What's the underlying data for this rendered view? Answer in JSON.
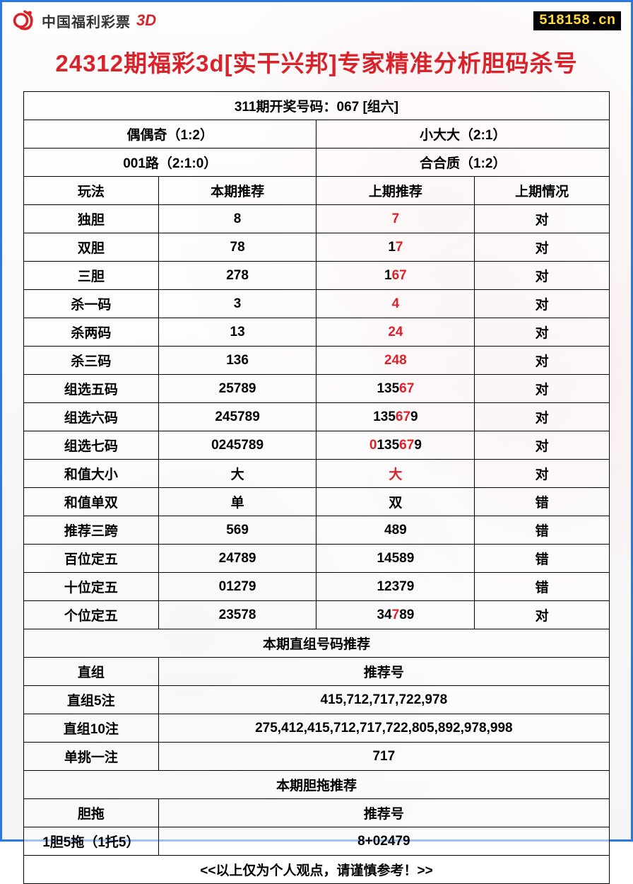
{
  "header": {
    "logo_text": "中国福利彩票",
    "logo_3d": "3D",
    "site_tag": "518158.cn"
  },
  "title": "24312期福彩3d[实干兴邦]专家精准分析胆码杀号",
  "draw_header": "311期开奖号码：067 [组六]",
  "attrs": {
    "a1": "偶偶奇（1:2）",
    "a2": "小大大（2:1）",
    "a3": "001路（2:1:0）",
    "a4": "合合质（1:2）"
  },
  "cols": {
    "c1": "玩法",
    "c2": "本期推荐",
    "c3": "上期推荐",
    "c4": "上期情况"
  },
  "rows": [
    {
      "name": "独胆",
      "cur": "8",
      "prev": [
        {
          "t": "7",
          "r": 1
        }
      ],
      "res": "对",
      "res_r": 1
    },
    {
      "name": "双胆",
      "cur": "78",
      "prev": [
        {
          "t": "1",
          "r": 0
        },
        {
          "t": "7",
          "r": 1
        }
      ],
      "res": "对",
      "res_r": 1
    },
    {
      "name": "三胆",
      "cur": "278",
      "prev": [
        {
          "t": "1",
          "r": 0
        },
        {
          "t": "67",
          "r": 1
        }
      ],
      "res": "对",
      "res_r": 1
    },
    {
      "name": "杀一码",
      "cur": "3",
      "prev": [
        {
          "t": "4",
          "r": 1
        }
      ],
      "res": "对",
      "res_r": 1
    },
    {
      "name": "杀两码",
      "cur": "13",
      "prev": [
        {
          "t": "24",
          "r": 1
        }
      ],
      "res": "对",
      "res_r": 1
    },
    {
      "name": "杀三码",
      "cur": "136",
      "prev": [
        {
          "t": "248",
          "r": 1
        }
      ],
      "res": "对",
      "res_r": 1
    },
    {
      "name": "组选五码",
      "cur": "25789",
      "prev": [
        {
          "t": "135",
          "r": 0
        },
        {
          "t": "67",
          "r": 1
        }
      ],
      "res": "对",
      "res_r": 1
    },
    {
      "name": "组选六码",
      "cur": "245789",
      "prev": [
        {
          "t": "135",
          "r": 0
        },
        {
          "t": "67",
          "r": 1
        },
        {
          "t": "9",
          "r": 0
        }
      ],
      "res": "对",
      "res_r": 1
    },
    {
      "name": "组选七码",
      "cur": "0245789",
      "prev": [
        {
          "t": "0",
          "r": 1
        },
        {
          "t": "135",
          "r": 0
        },
        {
          "t": "67",
          "r": 1
        },
        {
          "t": "9",
          "r": 0
        }
      ],
      "res": "对",
      "res_r": 1
    },
    {
      "name": "和值大小",
      "cur": "大",
      "prev": [
        {
          "t": "大",
          "r": 1
        }
      ],
      "res": "对",
      "res_r": 1
    },
    {
      "name": "和值单双",
      "cur": "单",
      "prev": [
        {
          "t": "双",
          "r": 0
        }
      ],
      "res": "错",
      "res_r": 0
    },
    {
      "name": "推荐三跨",
      "cur": "569",
      "prev": [
        {
          "t": "489",
          "r": 0
        }
      ],
      "res": "错",
      "res_r": 0
    },
    {
      "name": "百位定五",
      "cur": "24789",
      "prev": [
        {
          "t": "14589",
          "r": 0
        }
      ],
      "res": "错",
      "res_r": 0
    },
    {
      "name": "十位定五",
      "cur": "01279",
      "prev": [
        {
          "t": "12379",
          "r": 0
        }
      ],
      "res": "错",
      "res_r": 0
    },
    {
      "name": "个位定五",
      "cur": "23578",
      "prev": [
        {
          "t": "34",
          "r": 0
        },
        {
          "t": "7",
          "r": 1
        },
        {
          "t": "89",
          "r": 0
        }
      ],
      "res": "对",
      "res_r": 1
    }
  ],
  "zhizu_header": "本期直组号码推荐",
  "zhizu_cols": {
    "c1": "直组",
    "c2": "推荐号"
  },
  "zhizu_rows": [
    {
      "name": "直组5注",
      "val": "415,712,717,722,978"
    },
    {
      "name": "直组10注",
      "val": "275,412,415,712,717,722,805,892,978,998"
    },
    {
      "name": "单挑一注",
      "val": "717"
    }
  ],
  "dantuo_header": "本期胆拖推荐",
  "dantuo_cols": {
    "c1": "胆拖",
    "c2": "推荐号"
  },
  "dantuo_rows": [
    {
      "name": "1胆5拖（1托5）",
      "val": "8+02479"
    }
  ],
  "footer": "<<以上仅为个人观点，请谨慎参考！>>",
  "colors": {
    "border": "#2a78e4",
    "red": "#d8232a",
    "blue": "#1a4fd6",
    "black": "#000000",
    "tag_bg": "#000000",
    "tag_fg": "#ffd83b"
  }
}
